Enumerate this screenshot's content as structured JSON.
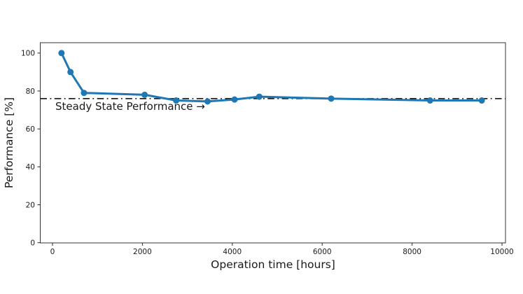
{
  "figure": {
    "background": "#ffffff"
  },
  "chart_data": {
    "type": "line",
    "title": "",
    "xlabel": "Operation time [hours]",
    "ylabel": "Performance [%]",
    "x_ticks": [
      0,
      2000,
      4000,
      6000,
      8000,
      10000
    ],
    "y_ticks": [
      0,
      20,
      40,
      60,
      80,
      100
    ],
    "xlim": [
      -270,
      10060
    ],
    "ylim": [
      0,
      105.4
    ],
    "grid": false,
    "legend_position": "none",
    "series": [
      {
        "name": "performance",
        "color": "#1f77b4",
        "marker": "circle",
        "marker_size": 4.5,
        "line_width": 3,
        "x": [
          200,
          400,
          700,
          2050,
          2750,
          3450,
          4050,
          4600,
          6200,
          8400,
          9550
        ],
        "y": [
          100,
          90,
          79,
          78,
          75,
          74.5,
          75.5,
          77,
          76,
          75,
          75
        ]
      }
    ],
    "reference_line": {
      "value": 76,
      "style": "dash-dot",
      "color": "#000000",
      "line_width": 1.5,
      "label": "Steady State Performance →"
    },
    "spine_color": "#333333",
    "tick_color": "#262626"
  }
}
